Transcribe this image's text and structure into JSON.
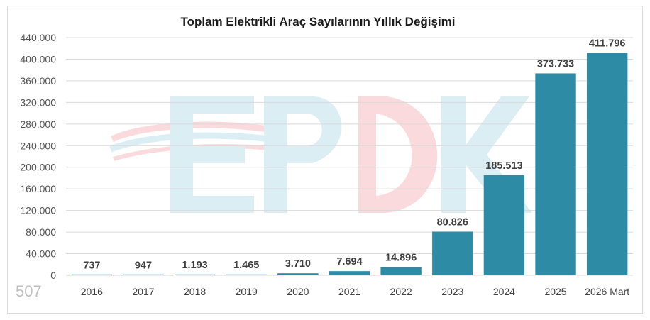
{
  "page_number": "507",
  "colors": {
    "bar": "#2e8ba5",
    "grid": "#d9d9d9",
    "watermark_blue": "#dbeef4",
    "watermark_red": "#fadadd"
  },
  "watermark_text": "EPDK",
  "chart_data": {
    "type": "bar",
    "title": "Toplam Elektrikli Araç Sayılarının Yıllık Değişimi",
    "xlabel": "",
    "ylabel": "",
    "categories": [
      "2016",
      "2017",
      "2018",
      "2019",
      "2020",
      "2021",
      "2022",
      "2023",
      "2024",
      "2025",
      "2026 Mart"
    ],
    "values": [
      737,
      947,
      1193,
      1465,
      3710,
      7694,
      14896,
      80826,
      185513,
      373733,
      411796
    ],
    "value_labels": [
      "737",
      "947",
      "1.193",
      "1.465",
      "3.710",
      "7.694",
      "14.896",
      "80.826",
      "185.513",
      "373.733",
      "411.796"
    ],
    "ylim": [
      0,
      440000
    ],
    "yticks": [
      0,
      40000,
      80000,
      120000,
      160000,
      200000,
      240000,
      280000,
      320000,
      360000,
      400000,
      440000
    ],
    "ytick_labels": [
      "0",
      "40.000",
      "80.000",
      "120.000",
      "160.000",
      "200.000",
      "240.000",
      "280.000",
      "320.000",
      "360.000",
      "400.000",
      "440.000"
    ],
    "grid": true,
    "legend": "none"
  }
}
